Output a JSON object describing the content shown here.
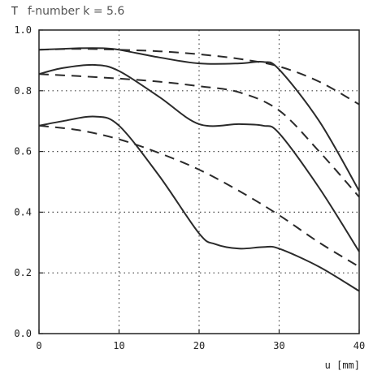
{
  "chart_data": {
    "type": "line",
    "title": "f-number k = 5.6",
    "ylabel": "T",
    "xlabel": "u [mm]",
    "xlim": [
      0,
      40
    ],
    "ylim": [
      0,
      1.0
    ],
    "x_ticks": [
      0,
      10,
      20,
      30,
      40
    ],
    "y_ticks": [
      0.0,
      0.2,
      0.4,
      0.6,
      0.8,
      1.0
    ],
    "x_tick_labels": [
      "0",
      "10",
      "20",
      "30",
      "40"
    ],
    "y_tick_labels": [
      "0.0",
      "0.2",
      "0.4",
      "0.6",
      "0.8",
      "1.0"
    ],
    "grid": true,
    "grid_style": "dotted",
    "series": [
      {
        "style": "dashed",
        "x": [
          0,
          5,
          10,
          15,
          20,
          25,
          30,
          35,
          40
        ],
        "y": [
          0.935,
          0.938,
          0.935,
          0.93,
          0.92,
          0.905,
          0.88,
          0.83,
          0.755
        ]
      },
      {
        "style": "solid",
        "x": [
          0,
          5,
          8,
          10,
          15,
          20,
          25,
          28,
          30,
          35,
          40
        ],
        "y": [
          0.935,
          0.94,
          0.94,
          0.935,
          0.91,
          0.89,
          0.89,
          0.895,
          0.87,
          0.7,
          0.47
        ]
      },
      {
        "style": "dashed",
        "x": [
          0,
          5,
          10,
          15,
          20,
          25,
          30,
          35,
          40
        ],
        "y": [
          0.855,
          0.848,
          0.84,
          0.83,
          0.815,
          0.795,
          0.735,
          0.6,
          0.45
        ]
      },
      {
        "style": "solid",
        "x": [
          0,
          3,
          7,
          10,
          15,
          20,
          25,
          28,
          30,
          35,
          40
        ],
        "y": [
          0.855,
          0.875,
          0.885,
          0.865,
          0.78,
          0.69,
          0.69,
          0.685,
          0.66,
          0.48,
          0.27
        ]
      },
      {
        "style": "dashed",
        "x": [
          0,
          5,
          10,
          15,
          20,
          25,
          30,
          35,
          40
        ],
        "y": [
          0.685,
          0.67,
          0.64,
          0.595,
          0.54,
          0.47,
          0.39,
          0.3,
          0.22
        ]
      },
      {
        "style": "solid",
        "x": [
          0,
          3,
          7,
          10,
          15,
          20,
          22,
          25,
          28,
          30,
          35,
          40
        ],
        "y": [
          0.685,
          0.7,
          0.715,
          0.685,
          0.52,
          0.33,
          0.295,
          0.28,
          0.285,
          0.28,
          0.22,
          0.14
        ]
      }
    ]
  }
}
